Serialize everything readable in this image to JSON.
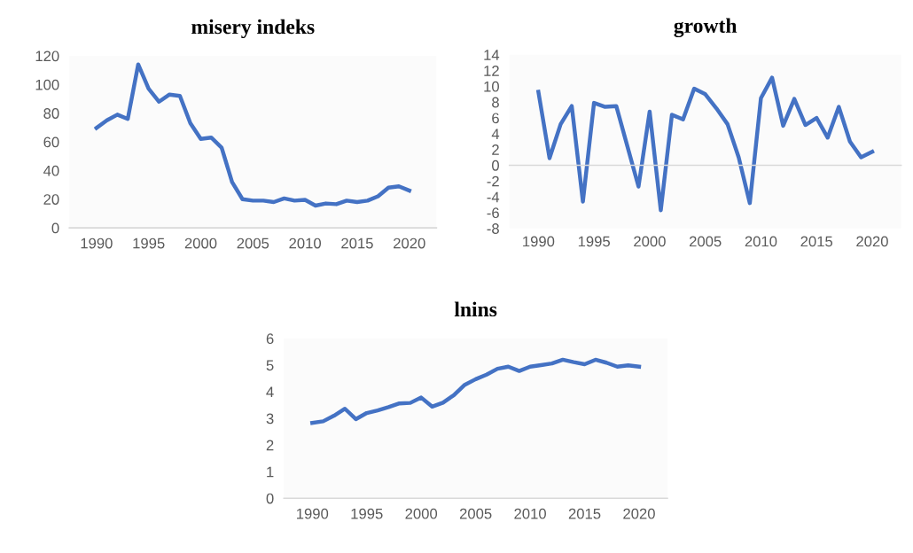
{
  "chart_data": [
    {
      "type": "line",
      "title": "misery indeks",
      "x": [
        1990,
        1991,
        1992,
        1993,
        1994,
        1995,
        1996,
        1997,
        1998,
        1999,
        2000,
        2001,
        2002,
        2003,
        2004,
        2005,
        2006,
        2007,
        2008,
        2009,
        2010,
        2011,
        2012,
        2013,
        2014,
        2015,
        2016,
        2017,
        2018,
        2019,
        2020
      ],
      "series": [
        {
          "color": "#4472c4",
          "values": [
            69.7,
            75,
            79,
            76,
            114,
            97,
            88,
            93,
            92,
            73,
            62,
            63,
            56,
            32,
            20,
            19,
            19,
            18,
            20.5,
            19,
            19.5,
            15.5,
            17,
            16.5,
            19,
            18,
            19,
            22,
            28,
            29,
            26
          ]
        }
      ],
      "xlim": [
        1987.4,
        2022.6
      ],
      "xticks": [
        1990,
        1995,
        2000,
        2005,
        2010,
        2015,
        2020
      ],
      "ylim": [
        0,
        120
      ],
      "yticks": [
        0,
        20,
        40,
        60,
        80,
        100,
        120
      ],
      "grid": false
    },
    {
      "type": "line",
      "title": "growth",
      "x": [
        1990,
        1991,
        1992,
        1993,
        1994,
        1995,
        1996,
        1997,
        1998,
        1999,
        2000,
        2001,
        2002,
        2003,
        2004,
        2005,
        2006,
        2007,
        2008,
        2009,
        2010,
        2011,
        2012,
        2013,
        2014,
        2015,
        2016,
        2017,
        2018,
        2019,
        2020
      ],
      "series": [
        {
          "color": "#4472c4",
          "values": [
            9.3,
            0.9,
            5.2,
            7.5,
            -4.6,
            7.9,
            7.4,
            7.5,
            2.4,
            -2.7,
            6.8,
            -5.7,
            6.4,
            5.8,
            9.7,
            9.0,
            7.2,
            5.2,
            1.0,
            -4.8,
            8.5,
            11.1,
            5.0,
            8.4,
            5.1,
            6.0,
            3.5,
            7.4,
            3.0,
            1.0,
            1.7
          ]
        }
      ],
      "xlim": [
        1987.4,
        2022.6
      ],
      "xticks": [
        1990,
        1995,
        2000,
        2005,
        2010,
        2015,
        2020
      ],
      "ylim": [
        -8,
        14
      ],
      "yticks": [
        -8,
        -6,
        -4,
        -2,
        0,
        2,
        4,
        6,
        8,
        10,
        12,
        14
      ]
    },
    {
      "type": "line",
      "title": "lnins",
      "x": [
        1990,
        1991,
        1992,
        1993,
        1994,
        1995,
        1996,
        1997,
        1998,
        1999,
        2000,
        2001,
        2002,
        2003,
        2004,
        2005,
        2006,
        2007,
        2008,
        2009,
        2010,
        2011,
        2012,
        2013,
        2014,
        2015,
        2016,
        2017,
        2018,
        2019,
        2020
      ],
      "series": [
        {
          "color": "#4472c4",
          "values": [
            2.83,
            2.89,
            3.1,
            3.36,
            2.97,
            3.2,
            3.3,
            3.42,
            3.56,
            3.58,
            3.78,
            3.44,
            3.59,
            3.87,
            4.26,
            4.47,
            4.64,
            4.86,
            4.94,
            4.78,
            4.94,
            5.0,
            5.06,
            5.2,
            5.11,
            5.03,
            5.2,
            5.09,
            4.94,
            4.99,
            4.94
          ]
        }
      ],
      "xlim": [
        1987.4,
        2022.6
      ],
      "xticks": [
        1990,
        1995,
        2000,
        2005,
        2010,
        2015,
        2020
      ],
      "ylim": [
        0,
        6
      ],
      "yticks": [
        0,
        1,
        2,
        3,
        4,
        5,
        6
      ],
      "grid": false
    }
  ]
}
